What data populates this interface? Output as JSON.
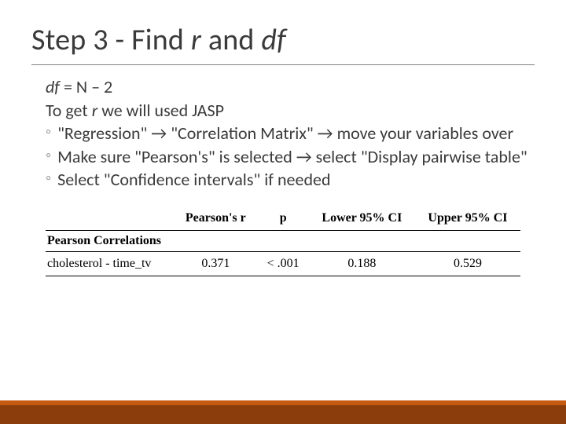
{
  "title": {
    "prefix": "Step 3 - Find ",
    "r": "r",
    "mid": " and ",
    "df": "df"
  },
  "content": {
    "line1_df": "df",
    "line1_rest": " = N – 2",
    "line2_pre": "To get ",
    "line2_r": "r",
    "line2_post": " we will used JASP",
    "bullets": [
      "\"Regression\" → \"Correlation Matrix\" → move your variables over",
      "Make sure \"Pearson's\" is selected → select \"Display pairwise table\"",
      "Select \"Confidence intervals\" if needed"
    ]
  },
  "table": {
    "caption": "Pearson Correlations",
    "columns": [
      "Pearson's r",
      "p",
      "Lower 95% CI",
      "Upper 95% CI"
    ],
    "row": {
      "label": "cholesterol - time_tv",
      "r": "0.371",
      "p": "< .001",
      "lower": "0.188",
      "upper": "0.529"
    }
  },
  "colors": {
    "text": "#3a3a3a",
    "rule": "#808080",
    "bullet": "#a0a0a0",
    "table_border": "#000000",
    "footer_top": "#c55a11",
    "footer_bottom": "#8b3e0c",
    "background": "#ffffff"
  }
}
